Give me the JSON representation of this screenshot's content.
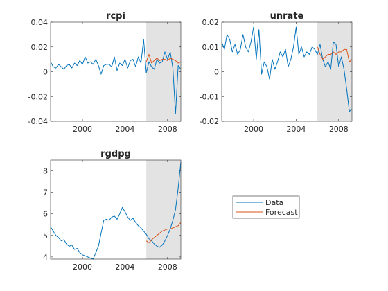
{
  "colors": {
    "data": "#0072BD",
    "forecast": "#D95319",
    "shade": "#e3e3e3",
    "axis": "#262626"
  },
  "legend": {
    "entries": [
      "Data",
      "Forecast"
    ],
    "placement": "right-middle"
  },
  "chart_data": [
    {
      "type": "line",
      "title": "rcpi",
      "xlim": [
        1997,
        2009.25
      ],
      "ylim": [
        -0.04,
        0.04
      ],
      "xticks": [
        2000,
        2004,
        2008
      ],
      "yticks": [
        -0.04,
        -0.02,
        0,
        0.02,
        0.04
      ],
      "ytick_labels": [
        "-0.04",
        "-0.02",
        "0",
        "0.02",
        "0.04"
      ],
      "forecast_region": [
        2006,
        2009.25
      ],
      "series": [
        {
          "name": "Data",
          "x": [
            1997,
            1997.25,
            1997.5,
            1997.75,
            1998,
            1998.25,
            1998.5,
            1998.75,
            1999,
            1999.25,
            1999.5,
            1999.75,
            2000,
            2000.25,
            2000.5,
            2000.75,
            2001,
            2001.25,
            2001.5,
            2001.75,
            2002,
            2002.25,
            2002.5,
            2002.75,
            2003,
            2003.25,
            2003.5,
            2003.75,
            2004,
            2004.25,
            2004.5,
            2004.75,
            2005,
            2005.25,
            2005.5,
            2005.75,
            2006,
            2006.25,
            2006.5,
            2006.75,
            2007,
            2007.25,
            2007.5,
            2007.75,
            2008,
            2008.25,
            2008.5,
            2008.75,
            2009,
            2009.25
          ],
          "y": [
            0.008,
            0.004,
            0.003,
            0.006,
            0.004,
            0.002,
            0.005,
            0.006,
            0.003,
            0.007,
            0.005,
            0.009,
            0.006,
            0.012,
            0.007,
            0.008,
            0.006,
            0.01,
            0.005,
            -0.002,
            0.005,
            0.006,
            0.006,
            0.004,
            0.012,
            0.001,
            0.007,
            0.005,
            0.01,
            0.003,
            0.009,
            0.01,
            0.004,
            0.012,
            0.007,
            0.026,
            -0.001,
            0.008,
            0.004,
            0.002,
            0.01,
            0.007,
            0.008,
            0.016,
            0.01,
            0.016,
            0.003,
            -0.034,
            0.005,
            0.002
          ]
        },
        {
          "name": "Forecast",
          "x": [
            2006,
            2006.25,
            2006.5,
            2006.75,
            2007,
            2007.25,
            2007.5,
            2007.75,
            2008,
            2008.25,
            2008.5,
            2008.75,
            2009,
            2009.25
          ],
          "y": [
            0.008,
            0.014,
            0.007,
            0.009,
            0.011,
            0.009,
            0.01,
            0.01,
            0.009,
            0.011,
            0.01,
            0.009,
            0.007,
            0.008
          ]
        }
      ]
    },
    {
      "type": "line",
      "title": "unrate",
      "xlim": [
        1997,
        2009.25
      ],
      "ylim": [
        -0.02,
        0.02
      ],
      "xticks": [
        2000,
        2004,
        2008
      ],
      "yticks": [
        -0.02,
        -0.01,
        0,
        0.01,
        0.02
      ],
      "ytick_labels": [
        "-0.02",
        "-0.01",
        "0",
        "0.01",
        "0.02"
      ],
      "forecast_region": [
        2006,
        2009.25
      ],
      "series": [
        {
          "name": "Data",
          "x": [
            1997,
            1997.25,
            1997.5,
            1997.75,
            1998,
            1998.25,
            1998.5,
            1998.75,
            1999,
            1999.25,
            1999.5,
            1999.75,
            2000,
            2000.25,
            2000.5,
            2000.75,
            2001,
            2001.25,
            2001.5,
            2001.75,
            2002,
            2002.25,
            2002.5,
            2002.75,
            2003,
            2003.25,
            2003.5,
            2003.75,
            2004,
            2004.25,
            2004.5,
            2004.75,
            2005,
            2005.25,
            2005.5,
            2005.75,
            2006,
            2006.25,
            2006.5,
            2006.75,
            2007,
            2007.25,
            2007.5,
            2007.75,
            2008,
            2008.25,
            2008.5,
            2008.75,
            2009,
            2009.25
          ],
          "y": [
            0.012,
            0.009,
            0.015,
            0.013,
            0.008,
            0.011,
            0.007,
            0.009,
            0.015,
            0.01,
            0.008,
            0.012,
            0.018,
            0.005,
            0.017,
            -0.001,
            0.004,
            0.002,
            -0.003,
            0.005,
            0.001,
            0.004,
            0.008,
            0.006,
            0.009,
            0.002,
            0.005,
            0.01,
            0.018,
            0.007,
            0.01,
            0.006,
            0.008,
            0.007,
            0.01,
            0.009,
            0.007,
            0.011,
            0.005,
            0.002,
            0.004,
            0.001,
            0.012,
            0.011,
            0.002,
            0.006,
            0.001,
            -0.007,
            -0.016,
            -0.015
          ]
        },
        {
          "name": "Forecast",
          "x": [
            2006,
            2006.25,
            2006.5,
            2006.75,
            2007,
            2007.25,
            2007.5,
            2007.75,
            2008,
            2008.25,
            2008.5,
            2008.75,
            2009,
            2009.25
          ],
          "y": [
            0.01,
            0.007,
            0.005,
            0.006,
            0.007,
            0.007,
            0.008,
            0.007,
            0.008,
            0.008,
            0.009,
            0.009,
            0.004,
            0.005
          ]
        }
      ]
    },
    {
      "type": "line",
      "title": "rgdpg",
      "xlim": [
        1997,
        2009.25
      ],
      "ylim": [
        3.9,
        8.5
      ],
      "xticks": [
        2000,
        2004,
        2008
      ],
      "yticks": [
        4,
        5,
        6,
        7,
        8
      ],
      "ytick_labels": [
        "4",
        "5",
        "6",
        "7",
        "8"
      ],
      "forecast_region": [
        2006,
        2009.25
      ],
      "series": [
        {
          "name": "Data",
          "x": [
            1997,
            1997.25,
            1997.5,
            1997.75,
            1998,
            1998.25,
            1998.5,
            1998.75,
            1999,
            1999.25,
            1999.5,
            1999.75,
            2000,
            2000.25,
            2000.5,
            2000.75,
            2001,
            2001.25,
            2001.5,
            2001.75,
            2002,
            2002.25,
            2002.5,
            2002.75,
            2003,
            2003.25,
            2003.5,
            2003.75,
            2004,
            2004.25,
            2004.5,
            2004.75,
            2005,
            2005.25,
            2005.5,
            2005.75,
            2006,
            2006.25,
            2006.5,
            2006.75,
            2007,
            2007.25,
            2007.5,
            2007.75,
            2008,
            2008.25,
            2008.5,
            2008.75,
            2009,
            2009.25
          ],
          "y": [
            5.4,
            5.2,
            5.0,
            4.9,
            4.75,
            4.8,
            4.6,
            4.5,
            4.55,
            4.35,
            4.4,
            4.2,
            4.1,
            4.05,
            4.0,
            3.95,
            3.9,
            4.2,
            4.5,
            5.1,
            5.7,
            5.75,
            5.7,
            5.85,
            5.9,
            5.75,
            6.0,
            6.3,
            6.1,
            5.85,
            5.7,
            5.8,
            5.6,
            5.45,
            5.35,
            5.2,
            5.05,
            4.85,
            4.75,
            4.6,
            4.5,
            4.45,
            4.55,
            4.75,
            5.0,
            5.3,
            5.7,
            6.2,
            7.2,
            8.4
          ]
        },
        {
          "name": "Forecast",
          "x": [
            2006,
            2006.25,
            2006.5,
            2006.75,
            2007,
            2007.25,
            2007.5,
            2007.75,
            2008,
            2008.25,
            2008.5,
            2008.75,
            2009,
            2009.25
          ],
          "y": [
            4.75,
            4.65,
            4.8,
            4.9,
            5.0,
            5.1,
            5.2,
            5.25,
            5.3,
            5.3,
            5.35,
            5.4,
            5.45,
            5.6
          ]
        }
      ]
    }
  ]
}
